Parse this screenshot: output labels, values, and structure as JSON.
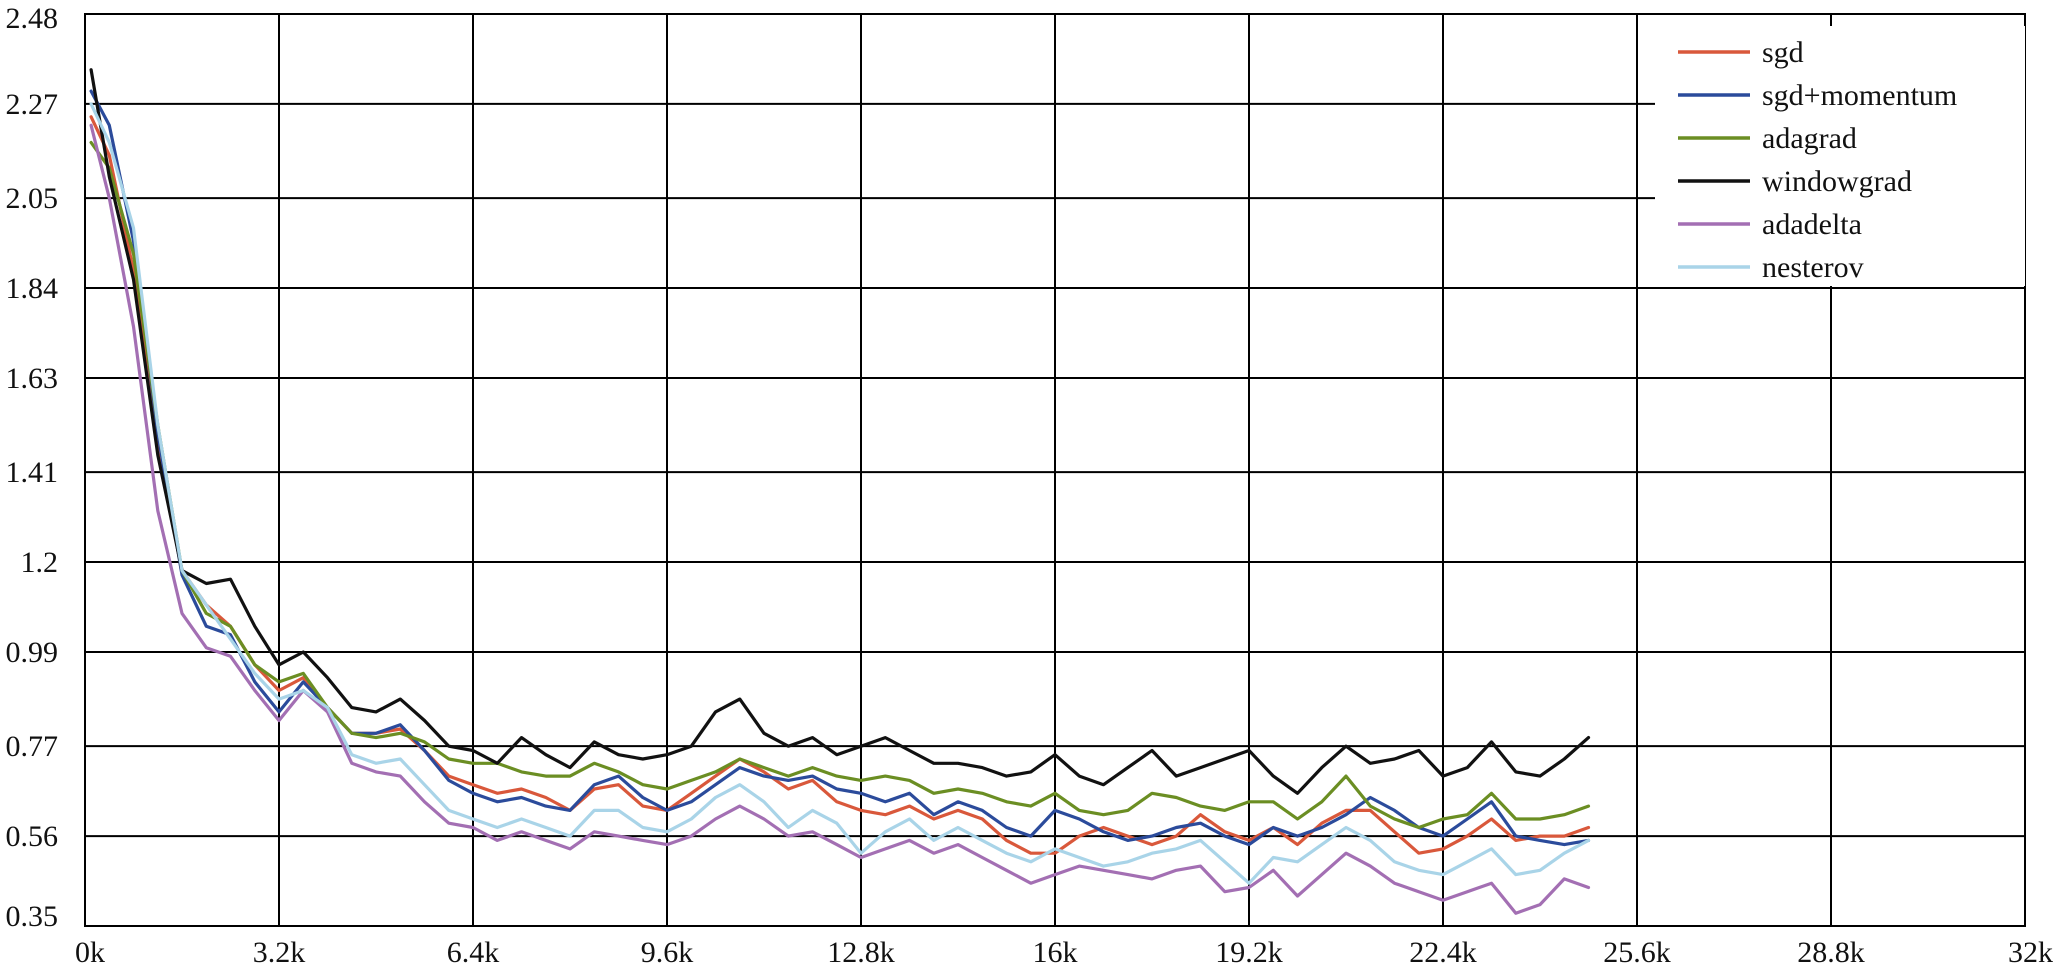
{
  "chart_data": {
    "type": "line",
    "title": "",
    "xlabel": "",
    "ylabel": "",
    "xlim": [
      0,
      32000
    ],
    "ylim": [
      0.35,
      2.48
    ],
    "grid": true,
    "legend_position": "top-right",
    "x_ticks": [
      {
        "value": 0,
        "label": "0k"
      },
      {
        "value": 3200,
        "label": "3.2k"
      },
      {
        "value": 6400,
        "label": "6.4k"
      },
      {
        "value": 9600,
        "label": "9.6k"
      },
      {
        "value": 12800,
        "label": "12.8k"
      },
      {
        "value": 16000,
        "label": "16k"
      },
      {
        "value": 19200,
        "label": "19.2k"
      },
      {
        "value": 22400,
        "label": "22.4k"
      },
      {
        "value": 25600,
        "label": "25.6k"
      },
      {
        "value": 28800,
        "label": "28.8k"
      },
      {
        "value": 32000,
        "label": "32k"
      }
    ],
    "y_ticks": [
      {
        "value": 0.35,
        "label": "0.35"
      },
      {
        "value": 0.56,
        "label": "0.56"
      },
      {
        "value": 0.77,
        "label": "0.77"
      },
      {
        "value": 0.99,
        "label": "0.99"
      },
      {
        "value": 1.2,
        "label": "1.2"
      },
      {
        "value": 1.41,
        "label": "1.41"
      },
      {
        "value": 1.63,
        "label": "1.63"
      },
      {
        "value": 1.84,
        "label": "1.84"
      },
      {
        "value": 2.05,
        "label": "2.05"
      },
      {
        "value": 2.27,
        "label": "2.27"
      },
      {
        "value": 2.48,
        "label": "2.48"
      }
    ],
    "x": [
      100,
      400,
      800,
      1200,
      1600,
      2000,
      2400,
      2800,
      3200,
      3600,
      4000,
      4400,
      4800,
      5200,
      5600,
      6000,
      6400,
      6800,
      7200,
      7600,
      8000,
      8400,
      8800,
      9200,
      9600,
      10000,
      10400,
      10800,
      11200,
      11600,
      12000,
      12400,
      12800,
      13200,
      13600,
      14000,
      14400,
      14800,
      15200,
      15600,
      16000,
      16400,
      16800,
      17200,
      17600,
      18000,
      18400,
      18800,
      19200,
      19600,
      20000,
      20400,
      20800,
      21200,
      21600,
      22000,
      22400,
      22800,
      23200,
      23600,
      24000,
      24400,
      24800
    ],
    "series": [
      {
        "name": "sgd",
        "color": "#d9583b",
        "values": [
          2.24,
          2.15,
          1.88,
          1.48,
          1.18,
          1.1,
          1.05,
          0.96,
          0.9,
          0.93,
          0.86,
          0.8,
          0.8,
          0.81,
          0.76,
          0.7,
          0.68,
          0.66,
          0.67,
          0.65,
          0.62,
          0.67,
          0.68,
          0.63,
          0.62,
          0.66,
          0.7,
          0.74,
          0.71,
          0.67,
          0.69,
          0.64,
          0.62,
          0.61,
          0.63,
          0.6,
          0.62,
          0.6,
          0.55,
          0.52,
          0.52,
          0.56,
          0.58,
          0.56,
          0.54,
          0.56,
          0.61,
          0.57,
          0.55,
          0.58,
          0.54,
          0.59,
          0.62,
          0.62,
          0.57,
          0.52,
          0.53,
          0.56,
          0.6,
          0.55,
          0.56,
          0.56,
          0.58
        ]
      },
      {
        "name": "sgd+momentum",
        "color": "#2b4b9b",
        "values": [
          2.3,
          2.22,
          1.95,
          1.5,
          1.17,
          1.05,
          1.03,
          0.92,
          0.85,
          0.92,
          0.86,
          0.8,
          0.8,
          0.82,
          0.76,
          0.69,
          0.66,
          0.64,
          0.65,
          0.63,
          0.62,
          0.68,
          0.7,
          0.65,
          0.62,
          0.64,
          0.68,
          0.72,
          0.7,
          0.69,
          0.7,
          0.67,
          0.66,
          0.64,
          0.66,
          0.61,
          0.64,
          0.62,
          0.58,
          0.56,
          0.62,
          0.6,
          0.57,
          0.55,
          0.56,
          0.58,
          0.59,
          0.56,
          0.54,
          0.58,
          0.56,
          0.58,
          0.61,
          0.65,
          0.62,
          0.58,
          0.56,
          0.6,
          0.64,
          0.56,
          0.55,
          0.54,
          0.55
        ]
      },
      {
        "name": "adagrad",
        "color": "#6b8e23",
        "values": [
          2.18,
          2.12,
          1.92,
          1.52,
          1.18,
          1.08,
          1.05,
          0.96,
          0.92,
          0.94,
          0.86,
          0.8,
          0.79,
          0.8,
          0.78,
          0.74,
          0.73,
          0.73,
          0.71,
          0.7,
          0.7,
          0.73,
          0.71,
          0.68,
          0.67,
          0.69,
          0.71,
          0.74,
          0.72,
          0.7,
          0.72,
          0.7,
          0.69,
          0.7,
          0.69,
          0.66,
          0.67,
          0.66,
          0.64,
          0.63,
          0.66,
          0.62,
          0.61,
          0.62,
          0.66,
          0.65,
          0.63,
          0.62,
          0.64,
          0.64,
          0.6,
          0.64,
          0.7,
          0.63,
          0.6,
          0.58,
          0.6,
          0.61,
          0.66,
          0.6,
          0.6,
          0.61,
          0.63
        ]
      },
      {
        "name": "windowgrad",
        "color": "#111111",
        "values": [
          2.35,
          2.1,
          1.86,
          1.45,
          1.18,
          1.15,
          1.16,
          1.05,
          0.96,
          0.99,
          0.93,
          0.86,
          0.85,
          0.88,
          0.83,
          0.77,
          0.76,
          0.73,
          0.79,
          0.75,
          0.72,
          0.78,
          0.75,
          0.74,
          0.75,
          0.77,
          0.85,
          0.88,
          0.8,
          0.77,
          0.79,
          0.75,
          0.77,
          0.79,
          0.76,
          0.73,
          0.73,
          0.72,
          0.7,
          0.71,
          0.75,
          0.7,
          0.68,
          0.72,
          0.76,
          0.7,
          0.72,
          0.74,
          0.76,
          0.7,
          0.66,
          0.72,
          0.77,
          0.73,
          0.74,
          0.76,
          0.7,
          0.72,
          0.78,
          0.71,
          0.7,
          0.74,
          0.79
        ]
      },
      {
        "name": "adadelta",
        "color": "#a36fb3",
        "values": [
          2.22,
          2.05,
          1.75,
          1.32,
          1.08,
          1.0,
          0.98,
          0.9,
          0.83,
          0.9,
          0.85,
          0.73,
          0.71,
          0.7,
          0.64,
          0.59,
          0.58,
          0.55,
          0.57,
          0.55,
          0.53,
          0.57,
          0.56,
          0.55,
          0.54,
          0.56,
          0.6,
          0.63,
          0.6,
          0.56,
          0.57,
          0.54,
          0.51,
          0.53,
          0.55,
          0.52,
          0.54,
          0.51,
          0.48,
          0.45,
          0.47,
          0.49,
          0.48,
          0.47,
          0.46,
          0.48,
          0.49,
          0.43,
          0.44,
          0.48,
          0.42,
          0.47,
          0.52,
          0.49,
          0.45,
          0.43,
          0.41,
          0.43,
          0.45,
          0.38,
          0.4,
          0.46,
          0.44
        ]
      },
      {
        "name": "nesterov",
        "color": "#a9d4e8",
        "values": [
          2.27,
          2.18,
          1.98,
          1.52,
          1.18,
          1.1,
          1.02,
          0.94,
          0.88,
          0.9,
          0.86,
          0.75,
          0.73,
          0.74,
          0.68,
          0.62,
          0.6,
          0.58,
          0.6,
          0.58,
          0.56,
          0.62,
          0.62,
          0.58,
          0.57,
          0.6,
          0.65,
          0.68,
          0.64,
          0.58,
          0.62,
          0.59,
          0.52,
          0.57,
          0.6,
          0.55,
          0.58,
          0.55,
          0.52,
          0.5,
          0.53,
          0.51,
          0.49,
          0.5,
          0.52,
          0.53,
          0.55,
          0.5,
          0.45,
          0.51,
          0.5,
          0.54,
          0.58,
          0.55,
          0.5,
          0.48,
          0.47,
          0.5,
          0.53,
          0.47,
          0.48,
          0.52,
          0.55
        ]
      }
    ]
  }
}
